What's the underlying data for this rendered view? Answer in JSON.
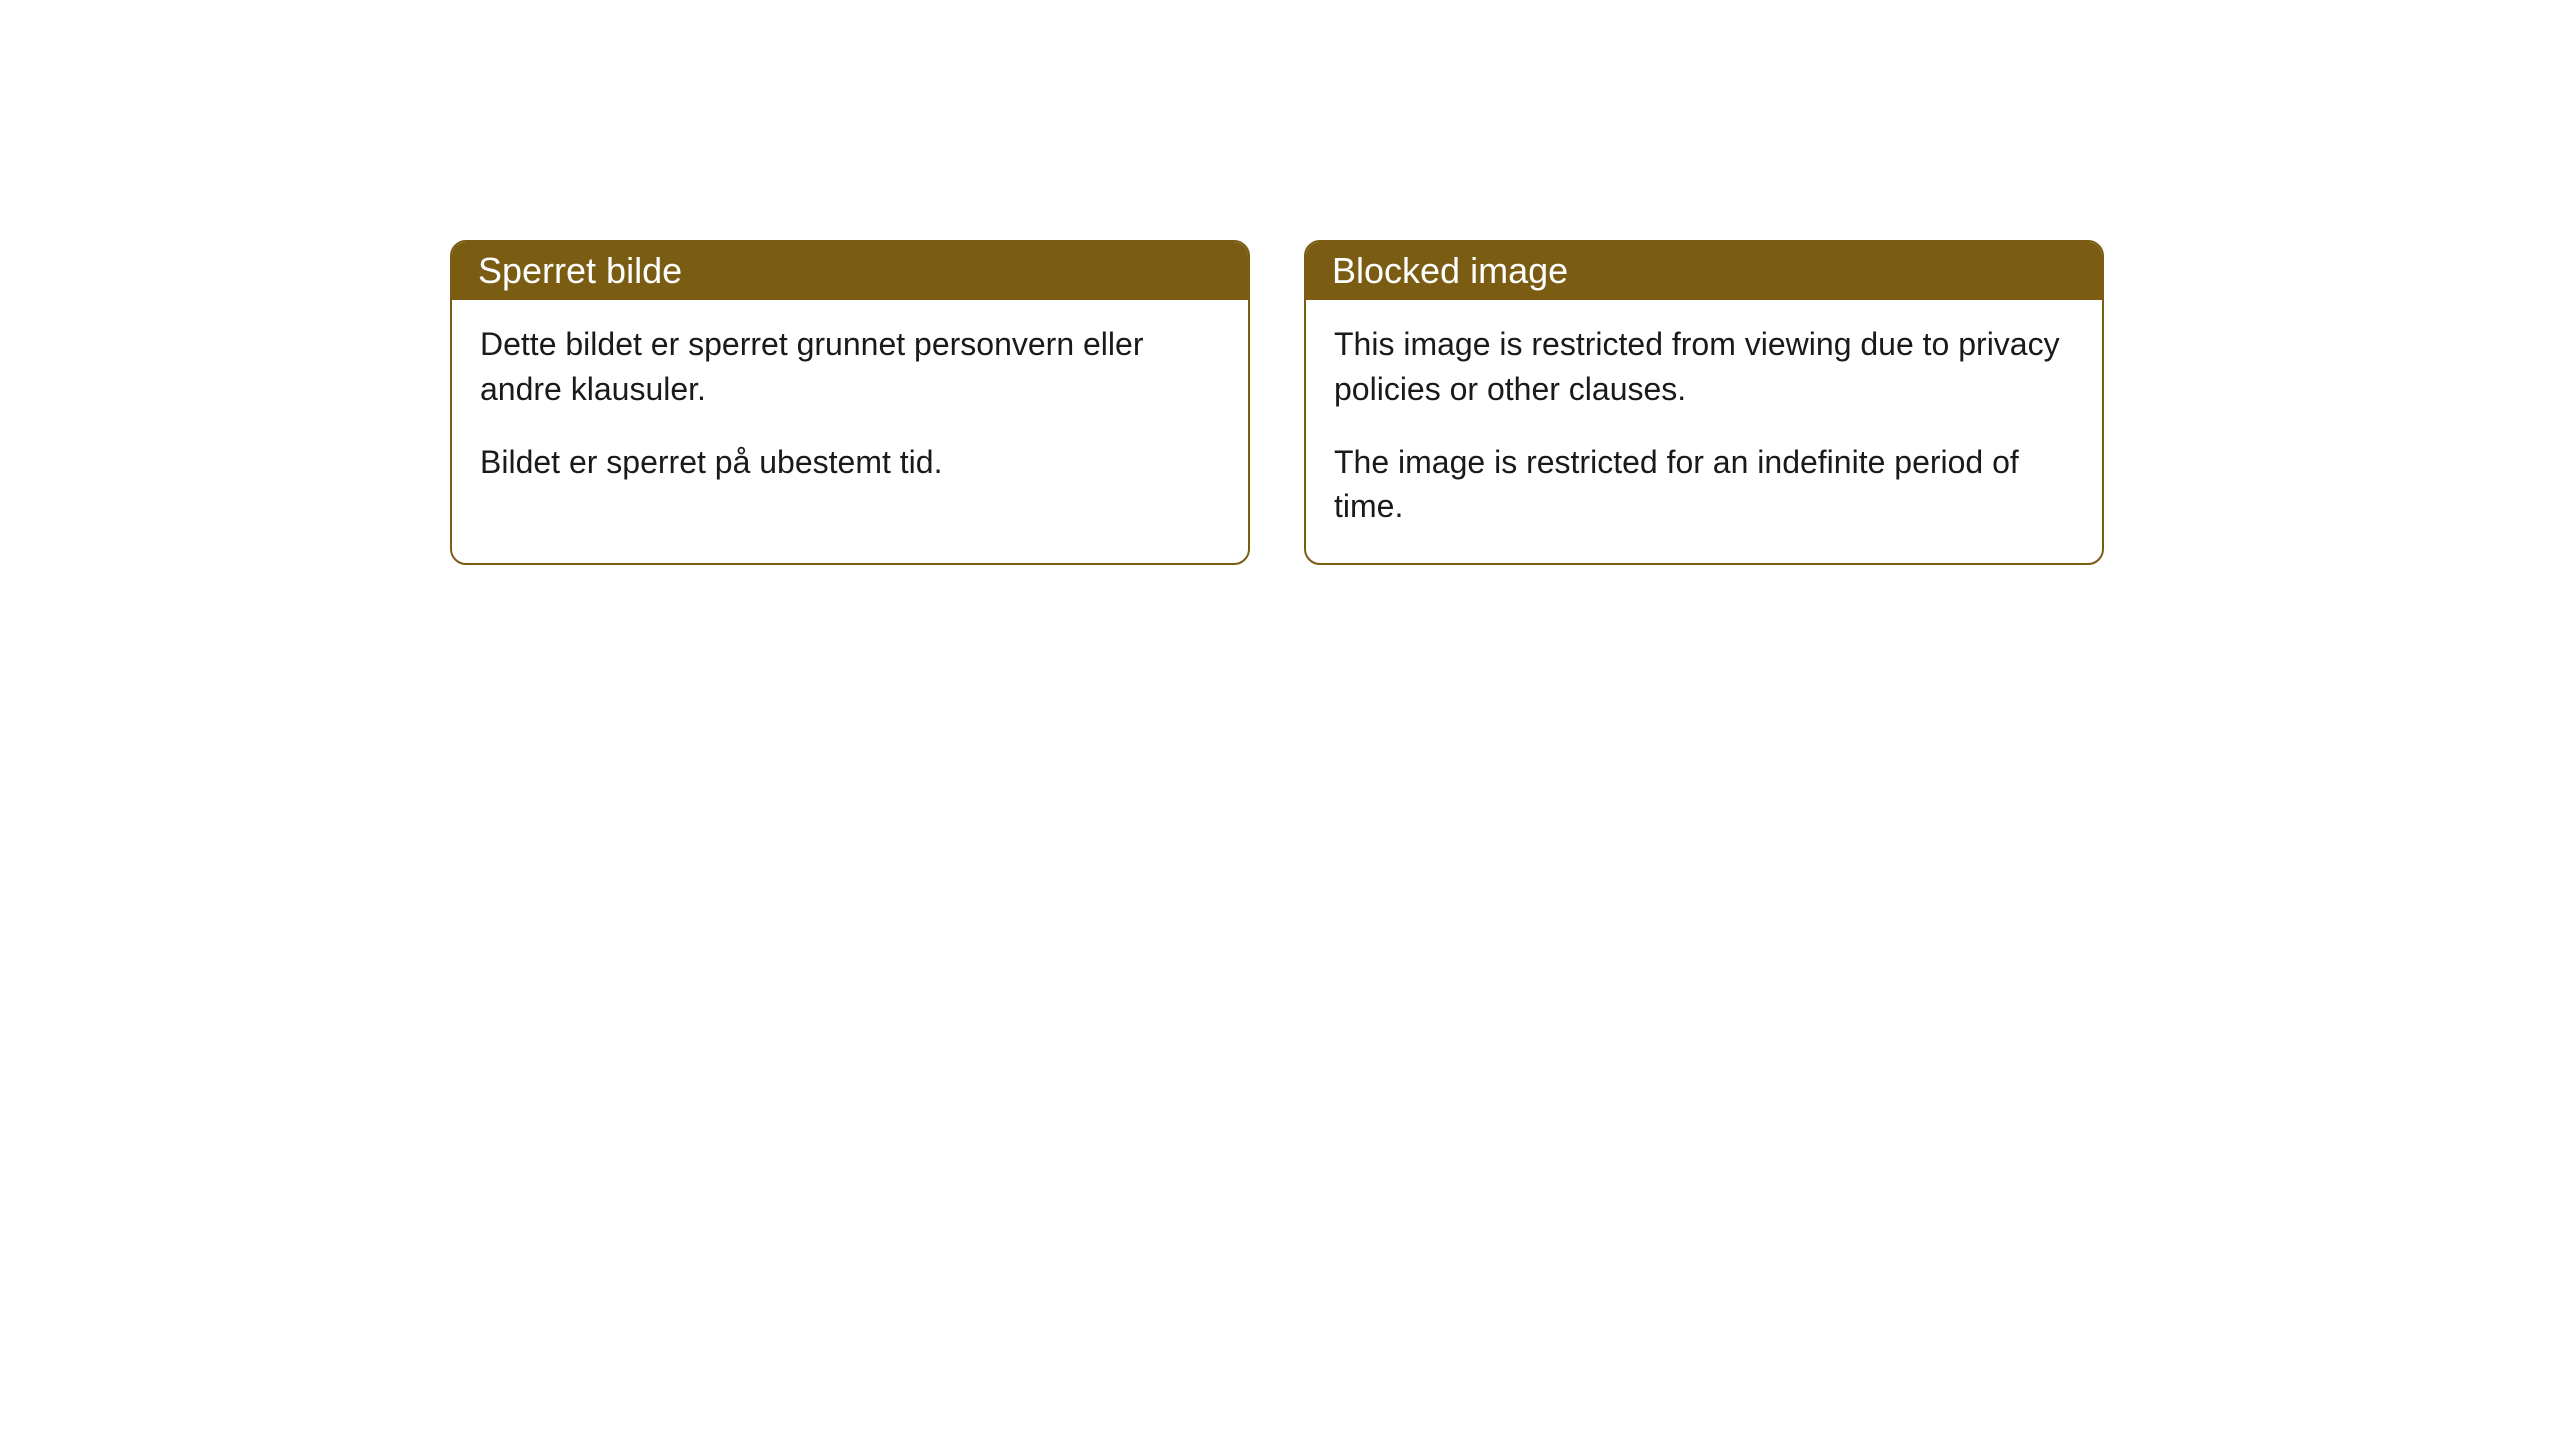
{
  "cards": [
    {
      "title": "Sperret bilde",
      "paragraph1": "Dette bildet er sperret grunnet personvern eller andre klausuler.",
      "paragraph2": "Bildet er sperret på ubestemt tid."
    },
    {
      "title": "Blocked image",
      "paragraph1": "This image is restricted from viewing due to privacy policies or other clauses.",
      "paragraph2": "The image is restricted for an indefinite period of time."
    }
  ],
  "styling": {
    "header_background": "#7a5d13",
    "header_text_color": "#ffffff",
    "border_color": "#7a5d13",
    "body_background": "#ffffff",
    "body_text_color": "#1a1a1a",
    "border_radius": 16,
    "title_fontsize": 36,
    "body_fontsize": 32
  }
}
